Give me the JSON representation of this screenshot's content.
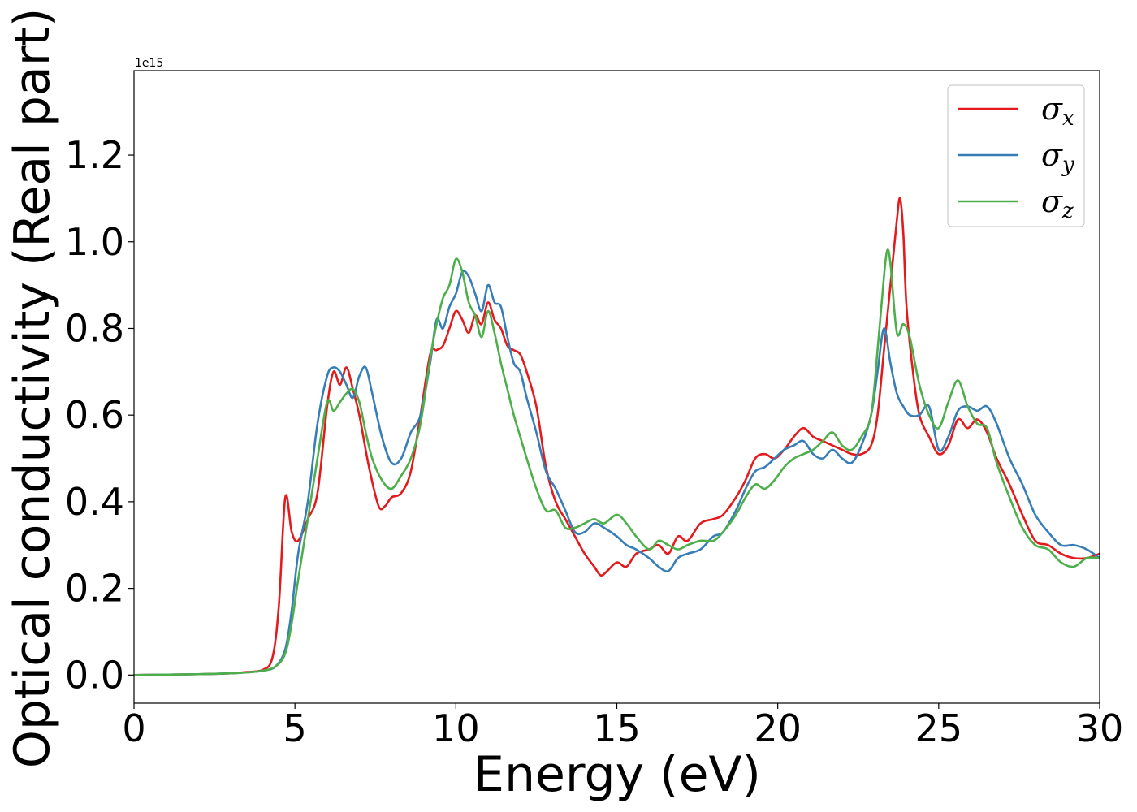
{
  "chart_data": {
    "type": "line",
    "title": "",
    "xlabel": "Energy (eV)",
    "ylabel": "Optical conductivity (Real part)",
    "y_offset_text": "1e15",
    "xlim": [
      0,
      30
    ],
    "ylim": [
      -0.065,
      1.395
    ],
    "xticks": [
      0,
      5,
      10,
      15,
      20,
      25,
      30
    ],
    "xtick_labels": [
      "0",
      "5",
      "10",
      "15",
      "20",
      "25",
      "30"
    ],
    "yticks": [
      0.0,
      0.2,
      0.4,
      0.6,
      0.8,
      1.0,
      1.2
    ],
    "ytick_labels": [
      "0.0",
      "0.2",
      "0.4",
      "0.6",
      "0.8",
      "1.0",
      "1.2"
    ],
    "grid": false,
    "legend_position": "top-right",
    "series": [
      {
        "name": "σx",
        "symbol": "σ",
        "subscript": "x",
        "color": "#e41a1c",
        "x": [
          0,
          2,
          3,
          3.5,
          4,
          4.3,
          4.5,
          4.7,
          4.9,
          5.1,
          5.4,
          5.7,
          6.0,
          6.2,
          6.4,
          6.6,
          6.8,
          7.0,
          7.3,
          7.6,
          7.8,
          8.0,
          8.3,
          8.6,
          8.9,
          9.2,
          9.4,
          9.6,
          9.8,
          10.0,
          10.2,
          10.4,
          10.6,
          10.8,
          11.0,
          11.2,
          11.4,
          11.6,
          11.8,
          12.0,
          12.2,
          12.5,
          12.8,
          13.1,
          13.4,
          13.7,
          14.0,
          14.3,
          14.5,
          14.7,
          15.0,
          15.3,
          15.6,
          16.0,
          16.3,
          16.6,
          16.9,
          17.2,
          17.6,
          18.0,
          18.3,
          18.7,
          19.0,
          19.3,
          19.6,
          19.9,
          20.2,
          20.5,
          20.8,
          21.1,
          21.4,
          21.7,
          22.0,
          22.3,
          22.6,
          22.9,
          23.1,
          23.3,
          23.5,
          23.7,
          23.8,
          23.9,
          24.0,
          24.2,
          24.4,
          24.7,
          25.0,
          25.3,
          25.6,
          25.9,
          26.2,
          26.5,
          26.8,
          27.2,
          27.6,
          28.0,
          28.4,
          28.8,
          29.2,
          29.6,
          30.0
        ],
        "values": [
          0.0,
          0.002,
          0.004,
          0.007,
          0.012,
          0.04,
          0.16,
          0.41,
          0.33,
          0.31,
          0.36,
          0.42,
          0.62,
          0.7,
          0.67,
          0.71,
          0.66,
          0.6,
          0.48,
          0.39,
          0.39,
          0.41,
          0.42,
          0.47,
          0.6,
          0.74,
          0.75,
          0.76,
          0.8,
          0.84,
          0.82,
          0.79,
          0.83,
          0.81,
          0.86,
          0.82,
          0.8,
          0.76,
          0.75,
          0.74,
          0.7,
          0.62,
          0.48,
          0.4,
          0.36,
          0.32,
          0.28,
          0.25,
          0.23,
          0.24,
          0.26,
          0.25,
          0.28,
          0.29,
          0.3,
          0.28,
          0.32,
          0.31,
          0.35,
          0.36,
          0.37,
          0.41,
          0.45,
          0.5,
          0.51,
          0.5,
          0.52,
          0.55,
          0.57,
          0.55,
          0.54,
          0.53,
          0.52,
          0.51,
          0.51,
          0.53,
          0.6,
          0.75,
          0.9,
          1.05,
          1.1,
          1.02,
          0.85,
          0.7,
          0.6,
          0.55,
          0.51,
          0.53,
          0.59,
          0.57,
          0.59,
          0.56,
          0.5,
          0.44,
          0.37,
          0.31,
          0.3,
          0.28,
          0.27,
          0.27,
          0.28
        ]
      },
      {
        "name": "σy",
        "symbol": "σ",
        "subscript": "y",
        "color": "#377eb8",
        "x": [
          0,
          2,
          3,
          3.5,
          4,
          4.4,
          4.7,
          4.9,
          5.1,
          5.4,
          5.7,
          6.0,
          6.2,
          6.4,
          6.6,
          6.8,
          7.0,
          7.2,
          7.4,
          7.7,
          8.0,
          8.3,
          8.6,
          8.9,
          9.2,
          9.4,
          9.6,
          9.8,
          10.0,
          10.2,
          10.4,
          10.6,
          10.8,
          11.0,
          11.2,
          11.4,
          11.6,
          11.8,
          12.0,
          12.2,
          12.5,
          12.8,
          13.1,
          13.4,
          13.7,
          14.0,
          14.3,
          14.6,
          15.0,
          15.3,
          15.6,
          16.0,
          16.3,
          16.6,
          16.9,
          17.2,
          17.6,
          18.0,
          18.3,
          18.7,
          19.0,
          19.3,
          19.6,
          19.9,
          20.2,
          20.5,
          20.8,
          21.1,
          21.4,
          21.7,
          22.0,
          22.3,
          22.6,
          22.9,
          23.1,
          23.3,
          23.5,
          23.7,
          23.9,
          24.1,
          24.4,
          24.7,
          25.0,
          25.3,
          25.6,
          25.9,
          26.2,
          26.5,
          26.8,
          27.2,
          27.6,
          28.0,
          28.4,
          28.8,
          29.2,
          29.6,
          30.0
        ],
        "values": [
          0.0,
          0.002,
          0.004,
          0.006,
          0.01,
          0.02,
          0.06,
          0.15,
          0.28,
          0.4,
          0.58,
          0.69,
          0.71,
          0.7,
          0.67,
          0.64,
          0.69,
          0.71,
          0.65,
          0.55,
          0.49,
          0.5,
          0.56,
          0.6,
          0.72,
          0.82,
          0.8,
          0.85,
          0.88,
          0.93,
          0.92,
          0.88,
          0.84,
          0.9,
          0.86,
          0.85,
          0.78,
          0.72,
          0.7,
          0.64,
          0.56,
          0.47,
          0.43,
          0.38,
          0.33,
          0.33,
          0.35,
          0.34,
          0.32,
          0.3,
          0.29,
          0.27,
          0.25,
          0.24,
          0.27,
          0.28,
          0.29,
          0.32,
          0.33,
          0.38,
          0.43,
          0.47,
          0.48,
          0.5,
          0.52,
          0.53,
          0.54,
          0.51,
          0.5,
          0.52,
          0.5,
          0.49,
          0.53,
          0.6,
          0.7,
          0.8,
          0.72,
          0.65,
          0.62,
          0.6,
          0.6,
          0.62,
          0.52,
          0.55,
          0.61,
          0.62,
          0.61,
          0.62,
          0.58,
          0.5,
          0.44,
          0.37,
          0.33,
          0.3,
          0.3,
          0.29,
          0.27
        ]
      },
      {
        "name": "σz",
        "symbol": "σ",
        "subscript": "z",
        "color": "#4daf4a",
        "x": [
          0,
          2,
          3,
          3.5,
          4,
          4.4,
          4.7,
          4.9,
          5.1,
          5.4,
          5.7,
          6.0,
          6.2,
          6.4,
          6.6,
          6.8,
          7.0,
          7.2,
          7.4,
          7.7,
          8.0,
          8.3,
          8.6,
          8.9,
          9.2,
          9.4,
          9.6,
          9.8,
          10.0,
          10.2,
          10.4,
          10.6,
          10.8,
          11.0,
          11.2,
          11.4,
          11.6,
          11.8,
          12.0,
          12.2,
          12.5,
          12.8,
          13.1,
          13.4,
          13.7,
          14.0,
          14.3,
          14.6,
          15.0,
          15.3,
          15.6,
          16.0,
          16.3,
          16.6,
          16.9,
          17.2,
          17.6,
          18.0,
          18.3,
          18.7,
          19.0,
          19.3,
          19.6,
          19.9,
          20.2,
          20.5,
          20.8,
          21.1,
          21.4,
          21.7,
          22.0,
          22.3,
          22.6,
          22.9,
          23.1,
          23.3,
          23.4,
          23.5,
          23.7,
          23.9,
          24.1,
          24.4,
          24.7,
          25.0,
          25.3,
          25.6,
          25.9,
          26.2,
          26.5,
          26.8,
          27.2,
          27.6,
          28.0,
          28.4,
          28.8,
          29.2,
          29.6,
          30.0
        ],
        "values": [
          0.0,
          0.002,
          0.004,
          0.006,
          0.01,
          0.02,
          0.05,
          0.12,
          0.22,
          0.36,
          0.5,
          0.63,
          0.61,
          0.63,
          0.65,
          0.66,
          0.63,
          0.56,
          0.5,
          0.45,
          0.43,
          0.46,
          0.5,
          0.58,
          0.73,
          0.81,
          0.87,
          0.9,
          0.96,
          0.93,
          0.86,
          0.83,
          0.78,
          0.84,
          0.79,
          0.72,
          0.66,
          0.6,
          0.55,
          0.5,
          0.43,
          0.38,
          0.38,
          0.34,
          0.34,
          0.35,
          0.36,
          0.35,
          0.37,
          0.35,
          0.32,
          0.29,
          0.31,
          0.3,
          0.29,
          0.3,
          0.31,
          0.31,
          0.33,
          0.37,
          0.41,
          0.44,
          0.43,
          0.45,
          0.48,
          0.5,
          0.51,
          0.52,
          0.54,
          0.56,
          0.53,
          0.52,
          0.55,
          0.6,
          0.75,
          0.92,
          0.98,
          0.95,
          0.79,
          0.81,
          0.78,
          0.67,
          0.6,
          0.57,
          0.63,
          0.68,
          0.62,
          0.58,
          0.57,
          0.49,
          0.41,
          0.34,
          0.3,
          0.29,
          0.26,
          0.25,
          0.27,
          0.27
        ]
      }
    ]
  }
}
